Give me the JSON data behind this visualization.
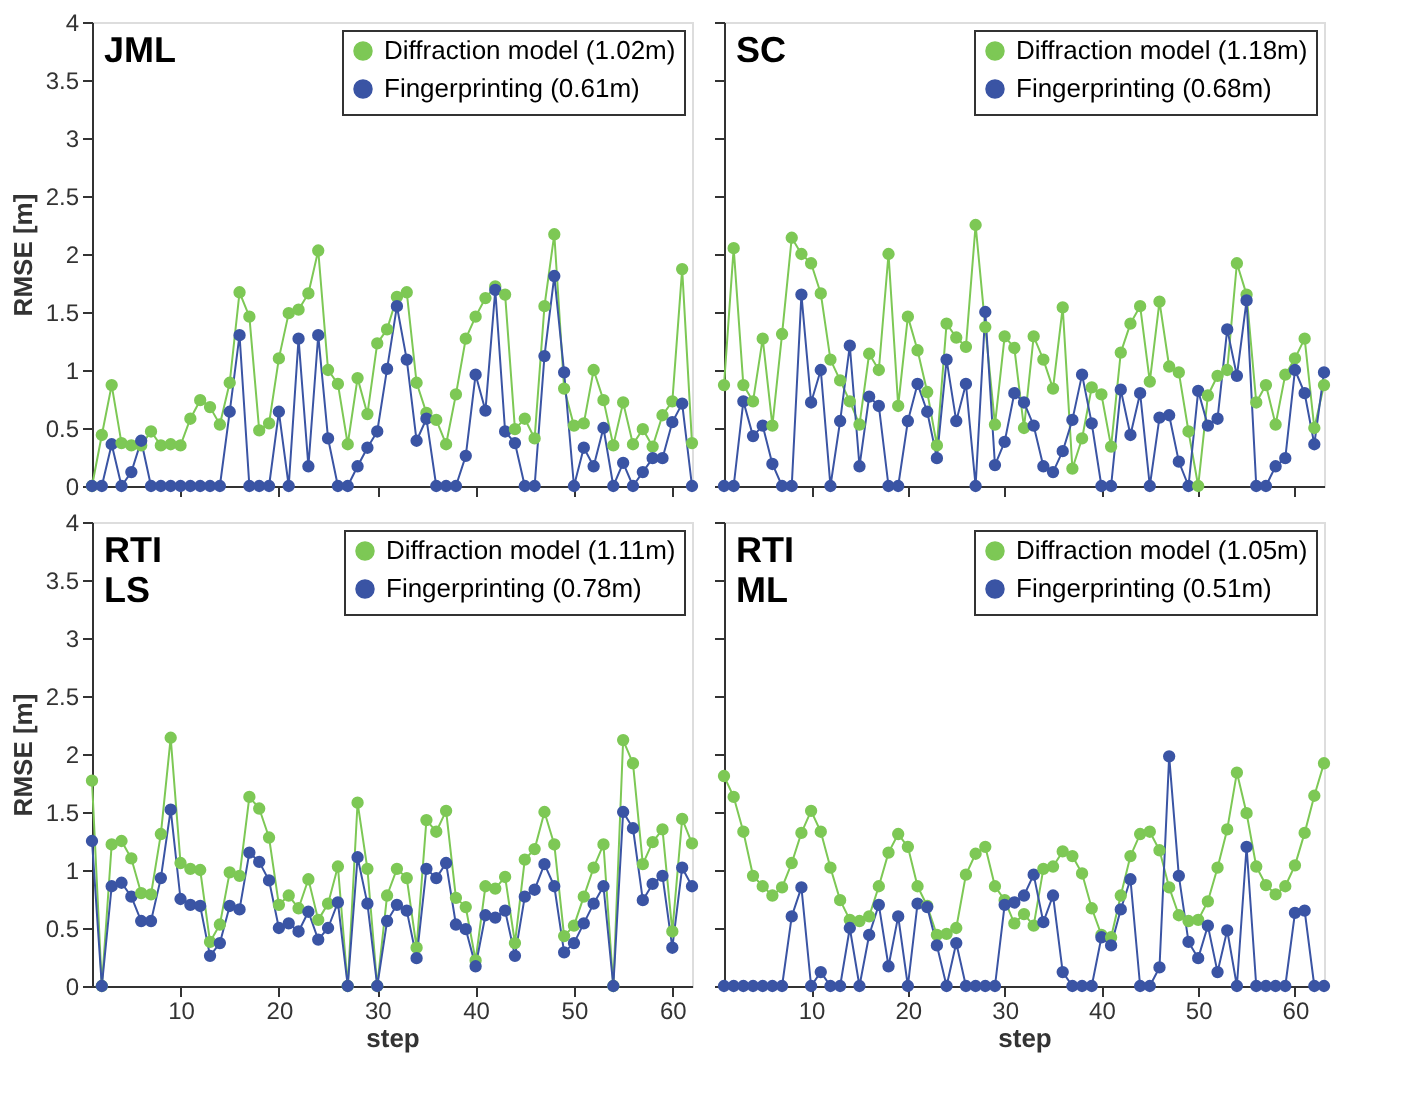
{
  "chart_data": [
    {
      "type": "line",
      "title": "JML",
      "ylabel": "RMSE [m]",
      "xlim": [
        1,
        62
      ],
      "xticks": [
        10,
        20,
        30,
        40,
        50,
        60
      ],
      "ylim": [
        0,
        4
      ],
      "yticks": [
        0,
        0.5,
        1,
        1.5,
        2,
        2.5,
        3,
        3.5,
        4
      ],
      "tick_labels": "y",
      "grid": false,
      "legend": "top right",
      "marker": "circle",
      "line_style": "solid",
      "x": [
        1,
        2,
        3,
        4,
        5,
        6,
        7,
        8,
        9,
        10,
        11,
        12,
        13,
        14,
        15,
        16,
        17,
        18,
        19,
        20,
        21,
        22,
        23,
        24,
        25,
        26,
        27,
        28,
        29,
        30,
        31,
        32,
        33,
        34,
        35,
        36,
        37,
        38,
        39,
        40,
        41,
        42,
        43,
        44,
        45,
        46,
        47,
        48,
        49,
        50,
        51,
        52,
        53,
        54,
        55,
        56,
        57,
        58,
        59,
        60,
        61,
        62
      ],
      "series": [
        {
          "name": "Diffraction model (1.02m)",
          "color": "#7dc855",
          "values": [
            0,
            0.44,
            0.87,
            0.37,
            0.35,
            0.35,
            0.47,
            0.35,
            0.36,
            0.35,
            0.58,
            0.74,
            0.68,
            0.53,
            0.89,
            1.67,
            1.46,
            0.48,
            0.54,
            1.1,
            1.49,
            1.52,
            1.66,
            2.03,
            1.0,
            0.88,
            0.36,
            0.93,
            0.62,
            1.23,
            1.35,
            1.63,
            1.67,
            0.89,
            0.63,
            0.57,
            0.36,
            0.79,
            1.27,
            1.46,
            1.62,
            1.72,
            1.65,
            0.49,
            0.58,
            0.41,
            1.55,
            2.17,
            0.84,
            0.52,
            0.54,
            1.0,
            0.74,
            0.35,
            0.72,
            0.36,
            0.49,
            0.34,
            0.61,
            0.73,
            1.87,
            0.37
          ]
        },
        {
          "name": "Fingerprinting (0.61m)",
          "color": "#3a54a4",
          "values": [
            0,
            0,
            0.36,
            0,
            0.12,
            0.39,
            0,
            0,
            0,
            0,
            0,
            0,
            0,
            0,
            0.64,
            1.3,
            0,
            0,
            0,
            0.64,
            0,
            1.27,
            0.17,
            1.3,
            0.41,
            0,
            0,
            0.17,
            0.33,
            0.47,
            1.01,
            1.55,
            1.09,
            0.39,
            0.58,
            0,
            0,
            0,
            0.26,
            0.96,
            0.65,
            1.69,
            0.47,
            0.37,
            0,
            0,
            1.12,
            1.81,
            0.98,
            0,
            0.33,
            0.17,
            0.5,
            0,
            0.2,
            0,
            0.12,
            0.24,
            0.24,
            0.55,
            0.71,
            0
          ]
        }
      ]
    },
    {
      "type": "line",
      "title": "SC",
      "xlim": [
        1,
        63
      ],
      "xticks": [
        10,
        20,
        30,
        40,
        50,
        60
      ],
      "ylim": [
        0,
        4
      ],
      "yticks": [
        0,
        0.5,
        1,
        1.5,
        2,
        2.5,
        3,
        3.5,
        4
      ],
      "tick_labels": false,
      "grid": false,
      "legend": "top right",
      "marker": "circle",
      "line_style": "solid",
      "x": [
        1,
        2,
        3,
        4,
        5,
        6,
        7,
        8,
        9,
        10,
        11,
        12,
        13,
        14,
        15,
        16,
        17,
        18,
        19,
        20,
        21,
        22,
        23,
        24,
        25,
        26,
        27,
        28,
        29,
        30,
        31,
        32,
        33,
        34,
        35,
        36,
        37,
        38,
        39,
        40,
        41,
        42,
        43,
        44,
        45,
        46,
        47,
        48,
        49,
        50,
        51,
        52,
        53,
        54,
        55,
        56,
        57,
        58,
        59,
        60,
        61,
        62,
        63
      ],
      "series": [
        {
          "name": "Diffraction model (1.18m)",
          "color": "#7dc855",
          "values": [
            0.87,
            2.05,
            0.87,
            0.73,
            1.27,
            0.52,
            1.31,
            2.14,
            2.0,
            1.92,
            1.66,
            1.09,
            0.91,
            0.73,
            0.53,
            1.14,
            1.0,
            2.0,
            0.69,
            1.46,
            1.17,
            0.81,
            0.35,
            1.4,
            1.28,
            1.2,
            2.25,
            1.37,
            0.53,
            1.29,
            1.19,
            0.5,
            1.29,
            1.09,
            0.84,
            1.54,
            0.15,
            0.41,
            0.85,
            0.79,
            0.34,
            1.15,
            1.4,
            1.55,
            0.9,
            1.59,
            1.03,
            0.98,
            0.47,
            0,
            0.78,
            0.95,
            1.0,
            1.92,
            1.65,
            0.72,
            0.87,
            0.53,
            0.96,
            1.1,
            1.27,
            0.5,
            0.87
          ]
        },
        {
          "name": "Fingerprinting (0.68m)",
          "color": "#3a54a4",
          "values": [
            0,
            0,
            0.73,
            0.43,
            0.52,
            0.19,
            0,
            0,
            1.65,
            0.72,
            1.0,
            0,
            0.56,
            1.21,
            0.17,
            0.77,
            0.69,
            0,
            0,
            0.56,
            0.88,
            0.64,
            0.24,
            1.09,
            0.56,
            0.88,
            0,
            1.5,
            0.18,
            0.38,
            0.8,
            0.72,
            0.52,
            0.17,
            0.12,
            0.3,
            0.57,
            0.96,
            0.54,
            0,
            0,
            0.83,
            0.44,
            0.8,
            0,
            0.59,
            0.61,
            0.21,
            0,
            0.82,
            0.52,
            0.58,
            1.35,
            0.95,
            1.6,
            0,
            0,
            0.17,
            0.24,
            1.0,
            0.8,
            0.36,
            0.98
          ]
        }
      ]
    },
    {
      "type": "line",
      "title": "RTI\nLS",
      "xlabel": "step",
      "ylabel": "RMSE [m]",
      "xlim": [
        1,
        62
      ],
      "xticks": [
        10,
        20,
        30,
        40,
        50,
        60
      ],
      "ylim": [
        0,
        4
      ],
      "yticks": [
        0,
        0.5,
        1,
        1.5,
        2,
        2.5,
        3,
        3.5,
        4
      ],
      "grid": false,
      "legend": "top right",
      "marker": "circle",
      "line_style": "solid",
      "x": [
        1,
        2,
        3,
        4,
        5,
        6,
        7,
        8,
        9,
        10,
        11,
        12,
        13,
        14,
        15,
        16,
        17,
        18,
        19,
        20,
        21,
        22,
        23,
        24,
        25,
        26,
        27,
        28,
        29,
        30,
        31,
        32,
        33,
        34,
        35,
        36,
        37,
        38,
        39,
        40,
        41,
        42,
        43,
        44,
        45,
        46,
        47,
        48,
        49,
        50,
        51,
        52,
        53,
        54,
        55,
        56,
        57,
        58,
        59,
        60,
        61,
        62
      ],
      "series": [
        {
          "name": "Diffraction model (1.11m)",
          "color": "#7dc855",
          "values": [
            1.77,
            0,
            1.22,
            1.25,
            1.1,
            0.8,
            0.79,
            1.31,
            2.14,
            1.06,
            1.01,
            1.0,
            0.38,
            0.53,
            0.98,
            0.95,
            1.63,
            1.53,
            1.28,
            0.7,
            0.78,
            0.67,
            0.92,
            0.57,
            0.71,
            1.03,
            0,
            1.58,
            1.01,
            0,
            0.78,
            1.01,
            0.93,
            0.33,
            1.43,
            1.33,
            1.51,
            0.76,
            0.68,
            0.22,
            0.86,
            0.84,
            0.94,
            0.37,
            1.09,
            1.18,
            1.5,
            1.22,
            0.43,
            0.52,
            0.77,
            1.02,
            1.22,
            0,
            2.12,
            1.92,
            1.05,
            1.24,
            1.35,
            0.47,
            1.44,
            1.23
          ]
        },
        {
          "name": "Fingerprinting (0.78m)",
          "color": "#3a54a4",
          "values": [
            1.25,
            0,
            0.86,
            0.89,
            0.77,
            0.56,
            0.56,
            0.93,
            1.52,
            0.75,
            0.7,
            0.69,
            0.26,
            0.37,
            0.69,
            0.66,
            1.15,
            1.07,
            0.91,
            0.5,
            0.54,
            0.47,
            0.64,
            0.4,
            0.5,
            0.72,
            0,
            1.11,
            0.71,
            0,
            0.56,
            0.7,
            0.65,
            0.24,
            1.01,
            0.93,
            1.06,
            0.53,
            0.49,
            0.17,
            0.61,
            0.59,
            0.65,
            0.26,
            0.77,
            0.83,
            1.05,
            0.86,
            0.29,
            0.37,
            0.54,
            0.71,
            0.86,
            0,
            1.5,
            1.36,
            0.74,
            0.88,
            0.95,
            0.33,
            1.02,
            0.86
          ]
        }
      ]
    },
    {
      "type": "line",
      "title": "RTI\nML",
      "xlabel": "step",
      "xlim": [
        1,
        63
      ],
      "xticks": [
        10,
        20,
        30,
        40,
        50,
        60
      ],
      "ylim": [
        0,
        4
      ],
      "yticks": [
        0,
        0.5,
        1,
        1.5,
        2,
        2.5,
        3,
        3.5,
        4
      ],
      "tick_labels": "x",
      "grid": false,
      "legend": "top right",
      "marker": "circle",
      "line_style": "solid",
      "x": [
        1,
        2,
        3,
        4,
        5,
        6,
        7,
        8,
        9,
        10,
        11,
        12,
        13,
        14,
        15,
        16,
        17,
        18,
        19,
        20,
        21,
        22,
        23,
        24,
        25,
        26,
        27,
        28,
        29,
        30,
        31,
        32,
        33,
        34,
        35,
        36,
        37,
        38,
        39,
        40,
        41,
        42,
        43,
        44,
        45,
        46,
        47,
        48,
        49,
        50,
        51,
        52,
        53,
        54,
        55,
        56,
        57,
        58,
        59,
        60,
        61,
        62,
        63
      ],
      "series": [
        {
          "name": "Diffraction model (1.05m)",
          "color": "#7dc855",
          "values": [
            1.81,
            1.63,
            1.33,
            0.95,
            0.86,
            0.78,
            0.85,
            1.06,
            1.32,
            1.51,
            1.33,
            1.02,
            0.74,
            0.57,
            0.56,
            0.6,
            0.86,
            1.15,
            1.31,
            1.2,
            0.86,
            0.69,
            0.44,
            0.45,
            0.5,
            0.96,
            1.14,
            1.2,
            0.86,
            0.74,
            0.54,
            0.62,
            0.52,
            1.01,
            1.03,
            1.16,
            1.12,
            0.97,
            0.67,
            0.44,
            0.42,
            0.78,
            1.12,
            1.31,
            1.33,
            1.17,
            0.85,
            0.61,
            0.56,
            0.57,
            0.73,
            1.02,
            1.35,
            1.84,
            1.49,
            1.03,
            0.87,
            0.79,
            0.86,
            1.04,
            1.32,
            1.64,
            1.92
          ]
        },
        {
          "name": "Fingerprinting (0.51m)",
          "color": "#3a54a4",
          "values": [
            0,
            0,
            0,
            0,
            0,
            0,
            0,
            0.6,
            0.85,
            0,
            0.12,
            0,
            0,
            0.5,
            0,
            0.44,
            0.7,
            0.17,
            0.6,
            0,
            0.71,
            0.68,
            0.35,
            0,
            0.37,
            0,
            0,
            0,
            0,
            0.7,
            0.72,
            0.78,
            0.96,
            0.55,
            0.78,
            0.12,
            0,
            0,
            0,
            0.42,
            0.35,
            0.66,
            0.92,
            0,
            0,
            0.16,
            1.98,
            0.95,
            0.38,
            0.24,
            0.52,
            0.12,
            0.48,
            0,
            1.2,
            0,
            0,
            0,
            0,
            0.63,
            0.65,
            0,
            0
          ]
        }
      ]
    }
  ]
}
